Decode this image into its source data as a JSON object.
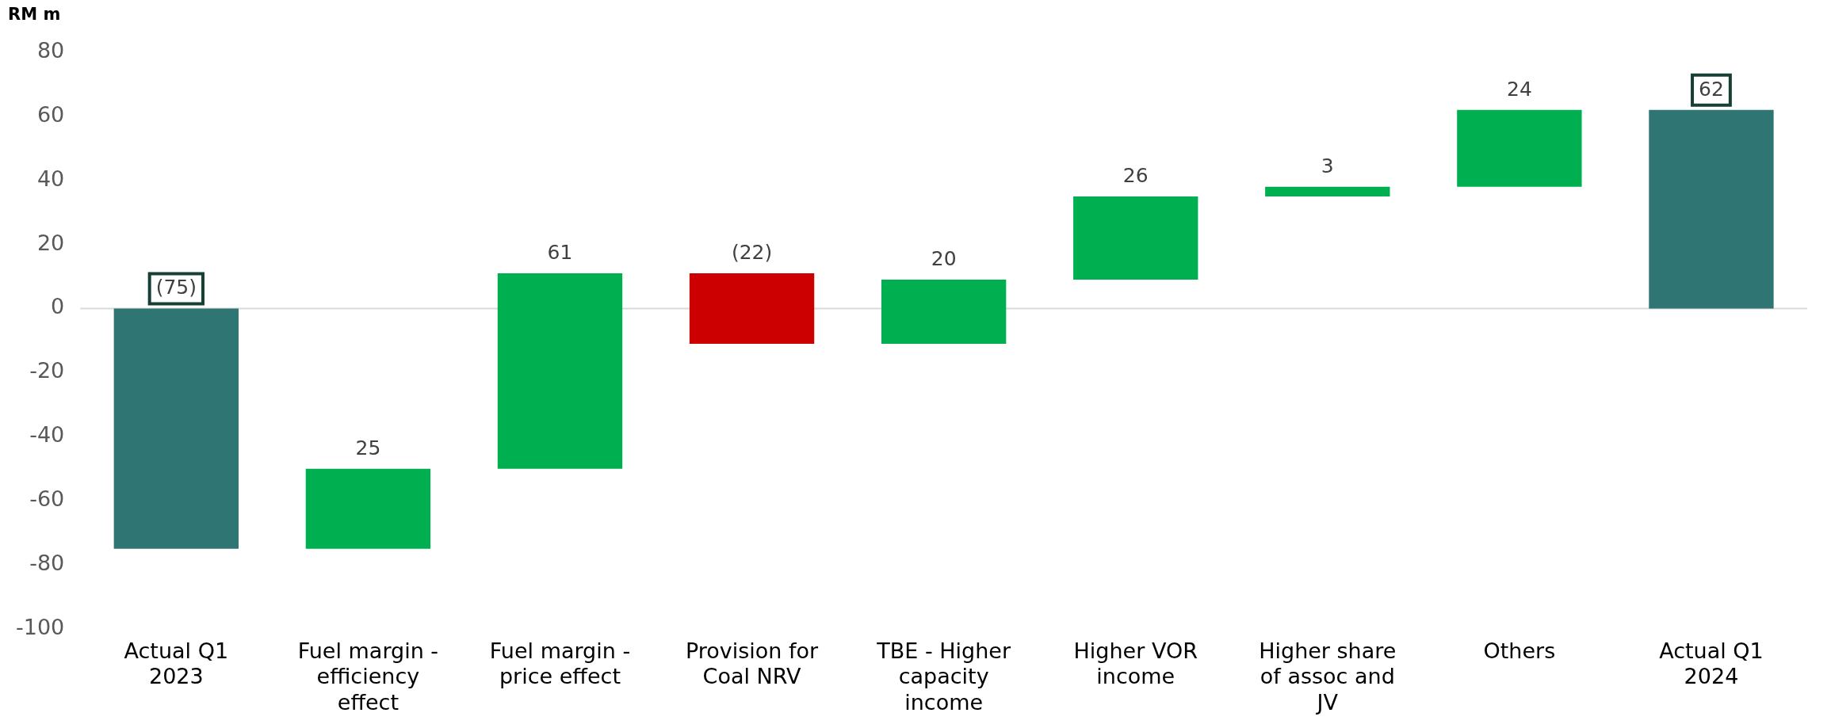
{
  "chart_data": {
    "type": "bar",
    "ylabel": "RM m",
    "categories": [
      "Actual Q1 2023",
      "Fuel margin - efficiency effect",
      "Fuel margin - price effect",
      "Provision for Coal NRV",
      "TBE - Higher capacity income",
      "Higher VOR income",
      "Higher share of assoc and JV",
      "Others",
      "Actual Q1 2024"
    ],
    "values": [
      -75,
      25,
      61,
      -22,
      20,
      26,
      3,
      24,
      62
    ],
    "base": [
      0,
      -75,
      -50,
      11,
      -11,
      9,
      35,
      38,
      0
    ],
    "colors": [
      "#2e7573",
      "#00b050",
      "#00b050",
      "#cc0000",
      "#00b050",
      "#00b050",
      "#00b050",
      "#00b050",
      "#2e7573"
    ],
    "value_labels": [
      "(75)",
      "25",
      "61",
      "(22)",
      "20",
      "26",
      "3",
      "24",
      "62"
    ],
    "ylim": [
      -100,
      80
    ],
    "yticks": [
      -100,
      -80,
      -60,
      -40,
      -20,
      0,
      20,
      40,
      60,
      80
    ],
    "ref_lines": [
      {
        "axis": "y",
        "value": 0,
        "color": "#d9d9d9"
      }
    ],
    "grid": false,
    "legend": false
  }
}
